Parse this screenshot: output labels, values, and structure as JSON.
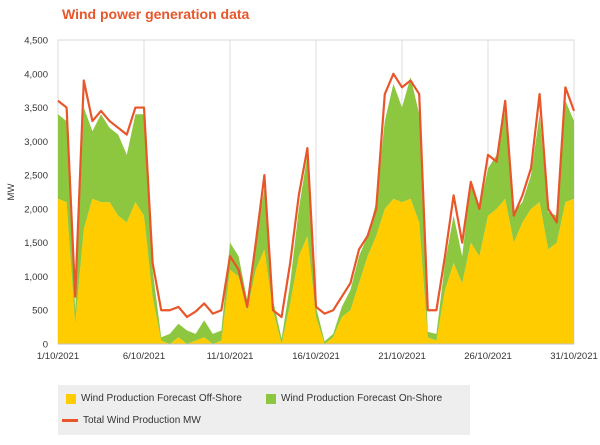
{
  "chart_data": {
    "type": "area",
    "title": "Wind power generation data",
    "ylabel": "MW",
    "xlabel": "",
    "ylim": [
      0,
      4500
    ],
    "yticks": [
      0,
      500,
      1000,
      1500,
      2000,
      2500,
      3000,
      3500,
      4000,
      4500
    ],
    "ytick_labels": [
      "0",
      "500",
      "1,000",
      "1,500",
      "2,000",
      "2,500",
      "3,000",
      "3,500",
      "4,000",
      "4,500"
    ],
    "xlim": [
      "2021-10-01",
      "2021-10-31"
    ],
    "xtick_labels": [
      "1/10/2021",
      "6/10/2021",
      "11/10/2021",
      "16/10/2021",
      "21/10/2021",
      "26/10/2021",
      "31/10/2021"
    ],
    "xticks": [
      "2021-10-01",
      "2021-10-06",
      "2021-10-11",
      "2021-10-16",
      "2021-10-21",
      "2021-10-26",
      "2021-10-31"
    ],
    "grid": "vertical",
    "legend": "bottom",
    "colors": {
      "offshore": "#ffcc00",
      "onshore": "#8dc63f",
      "total": "#e8562a"
    },
    "x": [
      "2021-10-01",
      "2021-10-01T12:00",
      "2021-10-02",
      "2021-10-02T12:00",
      "2021-10-03",
      "2021-10-03T12:00",
      "2021-10-04",
      "2021-10-04T12:00",
      "2021-10-05",
      "2021-10-05T12:00",
      "2021-10-06",
      "2021-10-06T12:00",
      "2021-10-07",
      "2021-10-07T12:00",
      "2021-10-08",
      "2021-10-08T12:00",
      "2021-10-09",
      "2021-10-09T12:00",
      "2021-10-10",
      "2021-10-10T12:00",
      "2021-10-11",
      "2021-10-11T12:00",
      "2021-10-12",
      "2021-10-12T12:00",
      "2021-10-13",
      "2021-10-13T12:00",
      "2021-10-14",
      "2021-10-14T12:00",
      "2021-10-15",
      "2021-10-15T12:00",
      "2021-10-16",
      "2021-10-16T12:00",
      "2021-10-17",
      "2021-10-17T12:00",
      "2021-10-18",
      "2021-10-18T12:00",
      "2021-10-19",
      "2021-10-19T12:00",
      "2021-10-20",
      "2021-10-20T12:00",
      "2021-10-21",
      "2021-10-21T12:00",
      "2021-10-22",
      "2021-10-22T12:00",
      "2021-10-23",
      "2021-10-23T12:00",
      "2021-10-24",
      "2021-10-24T12:00",
      "2021-10-25",
      "2021-10-25T12:00",
      "2021-10-26",
      "2021-10-26T12:00",
      "2021-10-27",
      "2021-10-27T12:00",
      "2021-10-28",
      "2021-10-28T12:00",
      "2021-10-29",
      "2021-10-29T12:00",
      "2021-10-30",
      "2021-10-30T12:00",
      "2021-10-31"
    ],
    "series": [
      {
        "name": "Wind Production Forecast Off-Shore",
        "values": [
          2150,
          2100,
          300,
          1700,
          2150,
          2100,
          2100,
          1900,
          1800,
          2100,
          1900,
          700,
          50,
          0,
          100,
          0,
          50,
          100,
          0,
          50,
          1100,
          1000,
          500,
          1100,
          1400,
          500,
          0,
          600,
          1300,
          1600,
          400,
          0,
          100,
          400,
          500,
          900,
          1300,
          1600,
          2000,
          2150,
          2100,
          2150,
          1800,
          100,
          50,
          800,
          1200,
          900,
          1500,
          1300,
          1900,
          2000,
          2150,
          1500,
          1800,
          2000,
          2100,
          1400,
          1500,
          2100,
          2150
        ]
      },
      {
        "name": "Wind Production Forecast On-Shore",
        "values": [
          1250,
          1200,
          200,
          1800,
          1000,
          1300,
          1100,
          1200,
          1000,
          1300,
          1500,
          400,
          50,
          150,
          200,
          200,
          100,
          250,
          150,
          150,
          400,
          300,
          150,
          450,
          900,
          150,
          80,
          300,
          700,
          1200,
          150,
          40,
          50,
          150,
          300,
          400,
          300,
          500,
          1300,
          1700,
          1400,
          1800,
          1600,
          80,
          100,
          400,
          700,
          400,
          900,
          700,
          700,
          800,
          1300,
          450,
          300,
          500,
          1300,
          550,
          400,
          1500,
          1150
        ]
      },
      {
        "name": "Total Wind Production MW",
        "values": [
          3600,
          3500,
          700,
          3900,
          3300,
          3450,
          3300,
          3200,
          3100,
          3500,
          3500,
          1200,
          500,
          500,
          550,
          400,
          480,
          600,
          450,
          500,
          1300,
          1100,
          550,
          1500,
          2500,
          500,
          400,
          1200,
          2200,
          2900,
          550,
          450,
          500,
          700,
          900,
          1400,
          1600,
          2000,
          3700,
          4000,
          3800,
          3900,
          3700,
          500,
          500,
          1300,
          2200,
          1500,
          2400,
          2000,
          2800,
          2700,
          3600,
          1900,
          2200,
          2600,
          3700,
          2000,
          1800,
          3800,
          3450
        ]
      }
    ]
  }
}
